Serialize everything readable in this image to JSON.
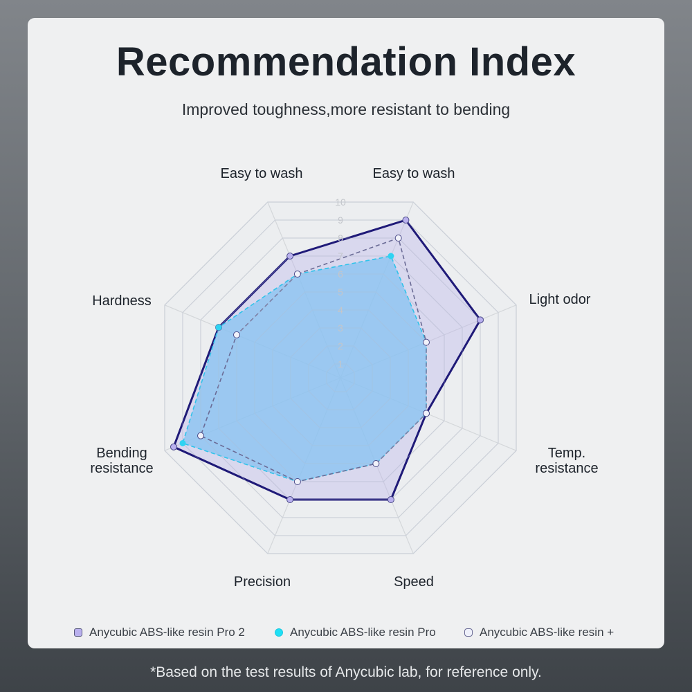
{
  "header": {
    "title": "Recommendation Index",
    "subtitle": "Improved toughness,more resistant to bending"
  },
  "chart_data": {
    "type": "radar",
    "title": "Recommendation Index",
    "axes": [
      "Easy to wash",
      "Easy to wash",
      "Light odor",
      "Temp. resistance",
      "Speed",
      "Precision",
      "Bending resistance",
      "Hardness"
    ],
    "axis_labels": [
      [
        "Easy to wash"
      ],
      [
        "Easy to wash"
      ],
      [
        "Light odor"
      ],
      [
        "Temp.",
        "resistance"
      ],
      [
        "Speed"
      ],
      [
        "Precision"
      ],
      [
        "Bending",
        "resistance"
      ],
      [
        "Hardness"
      ]
    ],
    "range": [
      0,
      10
    ],
    "ticks": [
      "1",
      "2",
      "3",
      "4",
      "5",
      "6",
      "7",
      "8",
      "9",
      "10"
    ],
    "grid": true,
    "legend_position": "bottom",
    "series": [
      {
        "name": "Anycubic ABS-like resin Pro 2",
        "values": [
          7,
          9,
          8,
          5,
          7,
          7,
          9.5,
          7
        ],
        "stroke": "#1f1a78",
        "fill": "#b7aeea",
        "marker": "#b9b0ee",
        "line": "solid"
      },
      {
        "name": "Anycubic ABS-like resin Pro",
        "values": [
          6,
          7,
          5,
          5,
          5,
          6,
          9,
          7
        ],
        "stroke": "#2fc3ea",
        "fill": "#86c3f2",
        "marker": "#2fd3f2",
        "line": "dashed"
      },
      {
        "name": "Anycubic ABS-like resin +",
        "values": [
          6,
          8,
          5,
          5,
          5,
          6,
          8,
          6
        ],
        "stroke": "#6b6c96",
        "fill": "none",
        "marker": "#f1f2fa",
        "line": "dashed"
      }
    ]
  },
  "footnote": "*Based on the test results of Anycubic lab, for reference only."
}
